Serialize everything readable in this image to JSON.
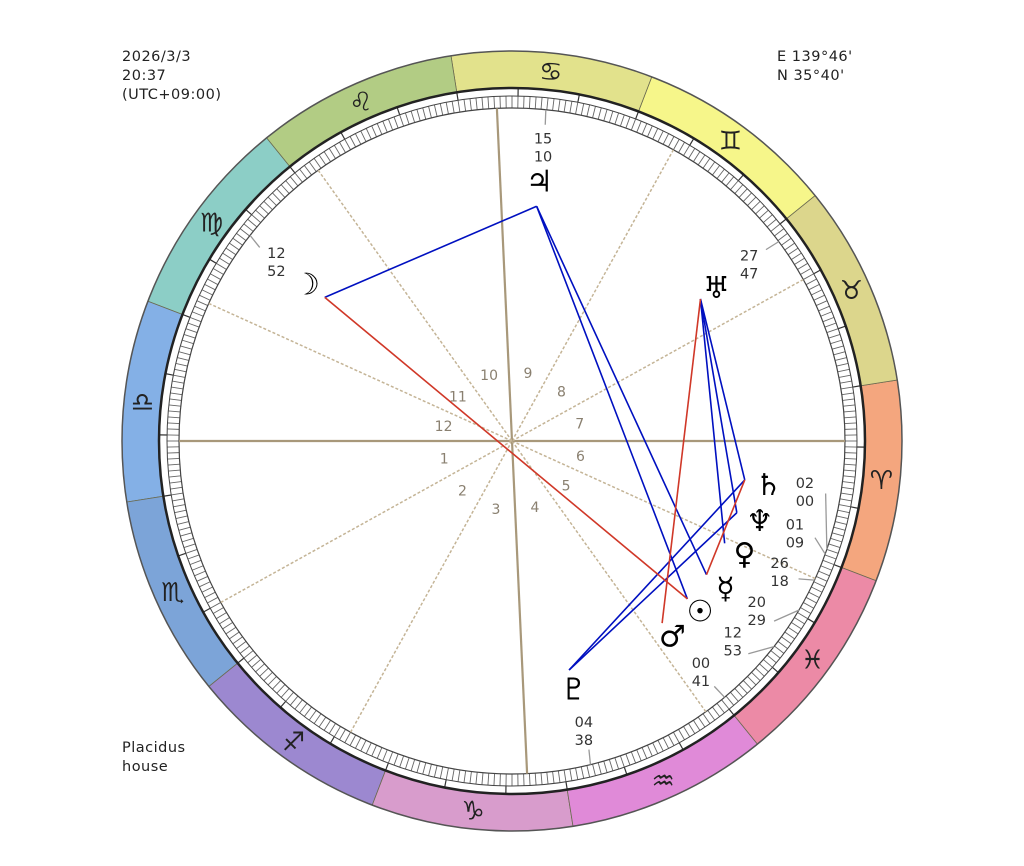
{
  "header": {
    "date": "2026/3/3",
    "time": "20:37",
    "timezone": "(UTC+09:00)"
  },
  "location": {
    "longitude": "E 139°46'",
    "latitude": "N 35°40'"
  },
  "house_system": {
    "line1": "Placidus",
    "line2": "house"
  },
  "signs": [
    {
      "name": "aries",
      "glyph": "♈",
      "color": "#f4a67e"
    },
    {
      "name": "taurus",
      "glyph": "♉",
      "color": "#dcd68c"
    },
    {
      "name": "gemini",
      "glyph": "♊",
      "color": "#f6f68a"
    },
    {
      "name": "cancer",
      "glyph": "♋",
      "color": "#e2e28c"
    },
    {
      "name": "leo",
      "glyph": "♌",
      "color": "#b2cc84"
    },
    {
      "name": "virgo",
      "glyph": "♍",
      "color": "#8ccec6"
    },
    {
      "name": "libra",
      "glyph": "♎",
      "color": "#84b0e6"
    },
    {
      "name": "scorpio",
      "glyph": "♏",
      "color": "#7ca4d8"
    },
    {
      "name": "sagittarius",
      "glyph": "♐",
      "color": "#9c88d0"
    },
    {
      "name": "capricorn",
      "glyph": "♑",
      "color": "#d89ccc"
    },
    {
      "name": "aquarius",
      "glyph": "♒",
      "color": "#e08ad8"
    },
    {
      "name": "pisces",
      "glyph": "♓",
      "color": "#ec8aa6"
    }
  ],
  "houses": [
    {
      "number": "1",
      "cusp": 201
    },
    {
      "number": "2",
      "cusp": 230
    },
    {
      "number": "3",
      "cusp": 262
    },
    {
      "number": "4",
      "cusp": 293.6
    },
    {
      "number": "5",
      "cusp": 326.6
    },
    {
      "number": "6",
      "cusp": 356.6
    },
    {
      "number": "7",
      "cusp": 21
    },
    {
      "number": "8",
      "cusp": 50
    },
    {
      "number": "9",
      "cusp": 82
    },
    {
      "number": "10",
      "cusp": 113.6
    },
    {
      "number": "11",
      "cusp": 146.6
    },
    {
      "number": "12",
      "cusp": 176.6
    }
  ],
  "planets": [
    {
      "name": "jupiter",
      "glyph": "♃",
      "sign": "cancer",
      "deg": "15",
      "min": "10",
      "longitude": 105.17
    },
    {
      "name": "moon",
      "glyph": "☽",
      "sign": "virgo",
      "deg": "12",
      "min": "52",
      "longitude": 162.87
    },
    {
      "name": "uranus",
      "glyph": "♅",
      "sign": "taurus",
      "deg": "27",
      "min": "47",
      "longitude": 57.78
    },
    {
      "name": "saturn",
      "glyph": "♄",
      "sign": "aries",
      "deg": "02",
      "min": "00",
      "longitude": 2.0
    },
    {
      "name": "neptune",
      "glyph": "♆",
      "sign": "aries",
      "deg": "01",
      "min": "09",
      "longitude": 1.15
    },
    {
      "name": "venus",
      "glyph": "♀",
      "sign": "pisces",
      "deg": "26",
      "min": "18",
      "longitude": 356.3
    },
    {
      "name": "mercury",
      "glyph": "☿",
      "sign": "pisces",
      "deg": "20",
      "min": "29",
      "longitude": 350.48
    },
    {
      "name": "sun",
      "glyph": "☉",
      "sign": "pisces",
      "deg": "12",
      "min": "53",
      "longitude": 342.88
    },
    {
      "name": "mars",
      "glyph": "♂",
      "sign": "pisces",
      "deg": "00",
      "min": "41",
      "longitude": 330.68
    },
    {
      "name": "pluto",
      "glyph": "♇",
      "sign": "aquarius",
      "deg": "04",
      "min": "38",
      "longitude": 304.63
    }
  ],
  "aspect_colors": {
    "harmonious": "#0010c0",
    "tense": "#d03828"
  },
  "aspects": [
    {
      "from": "jupiter",
      "to": "moon",
      "kind": "harmonious"
    },
    {
      "from": "jupiter",
      "to": "sun",
      "kind": "harmonious"
    },
    {
      "from": "jupiter",
      "to": "mercury",
      "kind": "harmonious"
    },
    {
      "from": "uranus",
      "to": "saturn",
      "kind": "harmonious"
    },
    {
      "from": "uranus",
      "to": "neptune",
      "kind": "harmonious"
    },
    {
      "from": "uranus",
      "to": "venus",
      "kind": "harmonious"
    },
    {
      "from": "pluto",
      "to": "saturn",
      "kind": "harmonious"
    },
    {
      "from": "pluto",
      "to": "neptune",
      "kind": "harmonious"
    },
    {
      "from": "moon",
      "to": "sun",
      "kind": "tense"
    },
    {
      "from": "uranus",
      "to": "mars",
      "kind": "tense"
    },
    {
      "from": "saturn",
      "to": "mercury",
      "kind": "tense"
    }
  ]
}
